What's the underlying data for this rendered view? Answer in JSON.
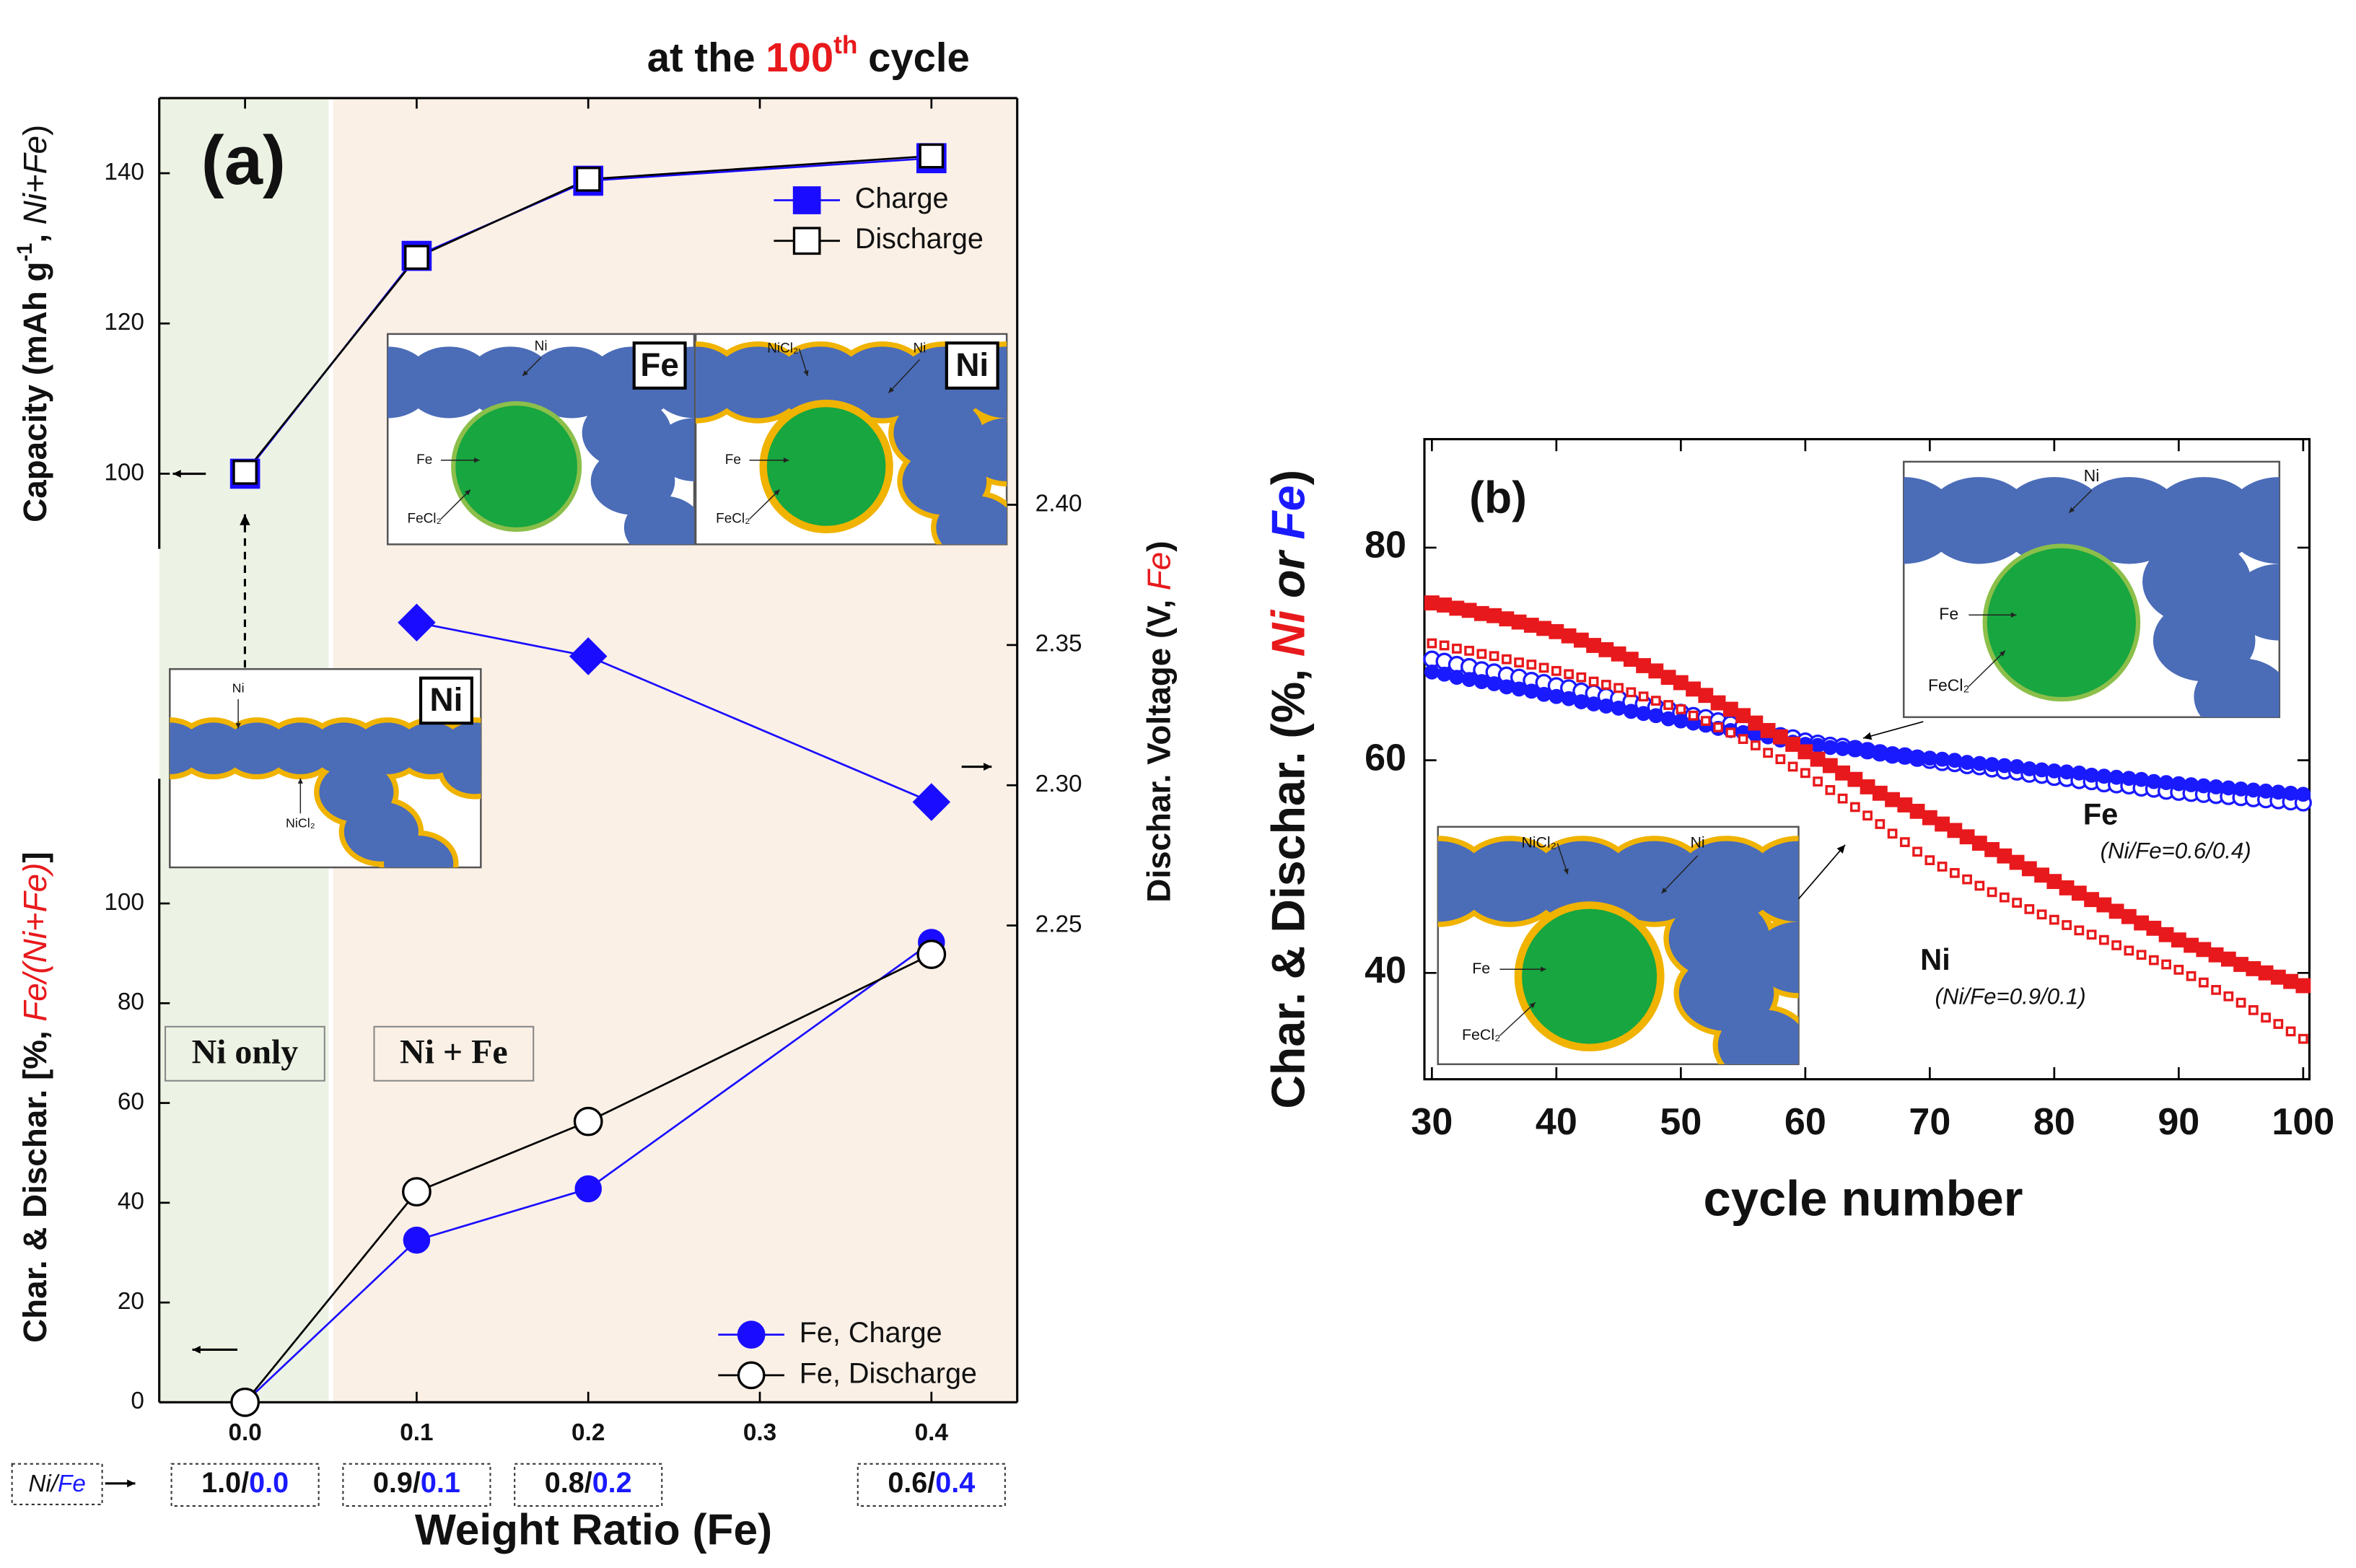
{
  "chart_data": [
    {
      "type": "line",
      "label": "(a)",
      "title": [
        "at the",
        "100",
        "th",
        "cycle"
      ],
      "xlabel": "Weight Ratio (Fe)",
      "xlim": [
        -0.05,
        0.45
      ],
      "xticks": [
        {
          "value": 0,
          "label": "0.0"
        },
        0.1,
        0.2,
        0.3,
        0.4
      ],
      "x": [
        0,
        0.1,
        0.2,
        0.4
      ],
      "ylabel": [
        "Capacity (mAh g",
        "-1",
        ",",
        "Ni+Fe",
        ")"
      ],
      "ylim": [
        90,
        150
      ],
      "yticks": [
        100,
        120,
        140
      ],
      "y2label": [
        "Dischar. Voltage (V,",
        "Fe",
        ")"
      ],
      "y2lim": [
        2.08,
        2.545
      ],
      "y2ticks": [
        2.25,
        {
          "value": 2.3,
          "label": "2.30"
        },
        2.35,
        {
          "value": 2.4,
          "label": "2.40"
        }
      ],
      "series": [
        {
          "name": "Charge",
          "color": "#1a0dff",
          "marker": "square",
          "filled": true,
          "values": [
            100,
            129,
            139,
            142
          ]
        },
        {
          "name": "Discharge",
          "color": "#000000",
          "marker": "square",
          "filled": false,
          "values": [
            100.2,
            128.8,
            139.2,
            142.3
          ]
        },
        {
          "color": "#1a0dff",
          "marker": "diamond",
          "filled": true,
          "axis": "y2",
          "values": [
            null,
            2.358,
            2.346,
            2.294
          ]
        }
      ],
      "regions": [
        {
          "label": "Ni only",
          "xlim": [
            -0.05,
            0.05
          ],
          "color": "#edf3e4"
        },
        {
          "label": "Ni + Fe",
          "xlim": [
            0.05,
            0.45
          ],
          "color": "#fbf0e6"
        }
      ],
      "ratio_header": [
        "Ni/",
        "Fe"
      ],
      "ratios": [
        [
          "1.0/",
          "0.0"
        ],
        [
          "0.9/",
          "0.1"
        ],
        [
          "0.8/",
          "0.2"
        ],
        [
          "0.6/",
          "0.4"
        ]
      ],
      "insets": [
        {
          "tag": "Fe",
          "labels": [
            "Ni",
            "Fe",
            "FeCl₂"
          ]
        },
        {
          "tag": "Ni",
          "labels": [
            "NiCl₂",
            "Ni",
            "Fe",
            "FeCl₂"
          ]
        },
        {
          "tag": "Ni",
          "labels": [
            "Ni",
            "NiCl₂"
          ]
        }
      ]
    },
    {
      "type": "line",
      "xlim": [
        -0.05,
        0.45
      ],
      "x": [
        0,
        0.1,
        0.2,
        0.4
      ],
      "ylabel": [
        "Char. & Dischar. [%,",
        "Fe/(Ni+Fe)",
        "]"
      ],
      "ylim": [
        0,
        125
      ],
      "yticks": [
        0,
        20,
        40,
        60,
        80,
        100
      ],
      "series": [
        {
          "name": "Fe, Charge",
          "color": "#1a0dff",
          "marker": "circle",
          "filled": true,
          "values": [
            0,
            32.5,
            42.8,
            92.2
          ]
        },
        {
          "name": "Fe, Discharge",
          "color": "#000000",
          "marker": "circle",
          "filled": false,
          "values": [
            0,
            42.2,
            56.3,
            89.8
          ]
        }
      ]
    },
    {
      "type": "line",
      "label": "(b)",
      "xlabel": "cycle number",
      "ylabel": [
        "Char. & Dischar. (%,",
        "Ni",
        "or",
        "Fe",
        ")"
      ],
      "xlim": [
        29.4,
        100.5
      ],
      "xticks": [
        30,
        40,
        50,
        60,
        70,
        80,
        90,
        100
      ],
      "ylim": [
        30,
        90.2
      ],
      "yticks": [
        40,
        60,
        80
      ],
      "x": [
        30,
        31,
        32,
        33,
        34,
        35,
        36,
        37,
        38,
        39,
        40,
        41,
        42,
        43,
        44,
        45,
        46,
        47,
        48,
        49,
        50,
        51,
        52,
        53,
        54,
        55,
        56,
        57,
        58,
        59,
        60,
        61,
        62,
        63,
        64,
        65,
        66,
        67,
        68,
        69,
        70,
        71,
        72,
        73,
        74,
        75,
        76,
        77,
        78,
        79,
        80,
        81,
        82,
        83,
        84,
        85,
        86,
        87,
        88,
        89,
        90,
        91,
        92,
        93,
        94,
        95,
        96,
        97,
        98,
        99,
        100
      ],
      "series": [
        {
          "color": "#1a1aff",
          "marker": "circle",
          "filled": false,
          "values": [
            69.5,
            69.3,
            69.0,
            68.8,
            68.5,
            68.3,
            68.0,
            67.8,
            67.5,
            67.3,
            67.0,
            66.8,
            66.5,
            66.3,
            66.0,
            65.8,
            65.5,
            65.3,
            65.0,
            64.8,
            64.5,
            64.2,
            64.0,
            63.7,
            63.4,
            63.2,
            62.9,
            62.6,
            62.3,
            62.1,
            61.8,
            61.6,
            61.4,
            61.3,
            61.1,
            60.9,
            60.7,
            60.5,
            60.4,
            60.2,
            60.0,
            59.8,
            59.7,
            59.5,
            59.4,
            59.2,
            59.0,
            58.9,
            58.7,
            58.6,
            58.4,
            58.3,
            58.1,
            58.0,
            57.8,
            57.7,
            57.6,
            57.4,
            57.3,
            57.1,
            57.0,
            56.9,
            56.8,
            56.7,
            56.6,
            56.5,
            56.4,
            56.3,
            56.2,
            56.1,
            56.0
          ]
        },
        {
          "color": "#1a1aff",
          "marker": "circle",
          "filled": true,
          "values": [
            68.3,
            68.1,
            67.8,
            67.6,
            67.4,
            67.2,
            66.9,
            66.7,
            66.5,
            66.2,
            66.0,
            65.8,
            65.5,
            65.3,
            65.1,
            64.9,
            64.6,
            64.4,
            64.2,
            63.9,
            63.7,
            63.5,
            63.3,
            63.0,
            62.8,
            62.6,
            62.4,
            62.2,
            61.9,
            61.7,
            61.5,
            61.4,
            61.2,
            61.1,
            61.0,
            60.9,
            60.7,
            60.6,
            60.5,
            60.3,
            60.2,
            60.1,
            60.0,
            59.8,
            59.7,
            59.6,
            59.5,
            59.4,
            59.2,
            59.1,
            59.0,
            58.9,
            58.8,
            58.6,
            58.5,
            58.4,
            58.3,
            58.2,
            58.0,
            57.9,
            57.8,
            57.7,
            57.6,
            57.5,
            57.4,
            57.3,
            57.2,
            57.1,
            57.0,
            56.9,
            56.8
          ]
        },
        {
          "color": "#e8191c",
          "marker": "square",
          "filled": false,
          "values": [
            71.0,
            70.8,
            70.5,
            70.3,
            70.0,
            69.8,
            69.5,
            69.2,
            69.0,
            68.7,
            68.4,
            68.1,
            67.8,
            67.4,
            67.1,
            66.8,
            66.4,
            66.0,
            65.6,
            65.2,
            64.8,
            64.2,
            63.7,
            63.1,
            62.6,
            62.0,
            61.4,
            60.7,
            60.1,
            59.4,
            58.8,
            58.0,
            57.2,
            56.4,
            55.6,
            54.8,
            54.0,
            53.1,
            52.3,
            51.4,
            50.6,
            50.0,
            49.4,
            48.8,
            48.2,
            47.6,
            47.1,
            46.6,
            46.0,
            45.5,
            45.0,
            44.5,
            44.0,
            43.6,
            43.1,
            42.6,
            42.1,
            41.7,
            41.2,
            40.8,
            40.3,
            39.7,
            39.1,
            38.4,
            37.8,
            37.2,
            36.5,
            35.8,
            35.2,
            34.5,
            33.8
          ]
        },
        {
          "color": "#e8191c",
          "marker": "square",
          "filled": true,
          "values": [
            74.8,
            74.6,
            74.3,
            74.1,
            73.8,
            73.6,
            73.3,
            73.0,
            72.7,
            72.4,
            72.1,
            71.7,
            71.3,
            70.8,
            70.4,
            70.0,
            69.5,
            68.9,
            68.4,
            67.8,
            67.3,
            66.7,
            66.1,
            65.4,
            64.8,
            64.2,
            63.5,
            62.8,
            62.2,
            61.5,
            60.8,
            60.1,
            59.5,
            58.8,
            58.2,
            57.5,
            56.9,
            56.3,
            55.8,
            55.2,
            54.6,
            54.0,
            53.4,
            52.8,
            52.2,
            51.6,
            51.0,
            50.4,
            49.8,
            49.2,
            48.6,
            48.0,
            47.5,
            46.9,
            46.4,
            45.8,
            45.3,
            44.7,
            44.2,
            43.6,
            43.1,
            42.6,
            42.2,
            41.7,
            41.3,
            40.8,
            40.4,
            40.0,
            39.6,
            39.2,
            38.8
          ]
        }
      ],
      "annotations": [
        {
          "text": "Fe",
          "color": "#1a1aff"
        },
        {
          "text": "(Ni/Fe=0.6/0.4)"
        },
        {
          "text": "Ni",
          "color": "#e8191c"
        },
        {
          "text": "(Ni/Fe=0.9/0.1)"
        }
      ],
      "insets": [
        {
          "labels": [
            "Ni",
            "Fe",
            "FeCl₂"
          ]
        },
        {
          "labels": [
            "NiCl₂",
            "Ni",
            "Fe",
            "FeCl₂"
          ]
        }
      ]
    }
  ]
}
